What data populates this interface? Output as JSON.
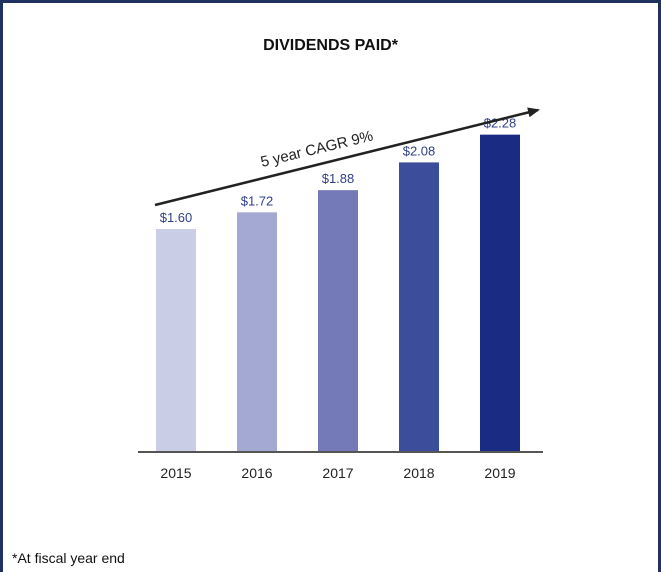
{
  "chart_data": {
    "type": "bar",
    "title": "DIVIDENDS PAID*",
    "footnote": "*At fiscal year end",
    "categories": [
      "2015",
      "2016",
      "2017",
      "2018",
      "2019"
    ],
    "values": [
      1.6,
      1.72,
      1.88,
      2.08,
      2.28
    ],
    "value_labels": [
      "$1.60",
      "$1.72",
      "$1.88",
      "$2.08",
      "$2.28"
    ],
    "bar_colors": [
      "#c9cee6",
      "#a3a9d3",
      "#7479b8",
      "#3c4e9b",
      "#1a2b84"
    ],
    "label_colors": [
      "#2f3f88",
      "#2f3f88",
      "#2f3f88",
      "#2f3f88",
      "#2f3f88"
    ],
    "annotation": "5 year CAGR 9%",
    "ylim": [
      0,
      2.4
    ],
    "grid": false,
    "xlabel": "",
    "ylabel": ""
  }
}
